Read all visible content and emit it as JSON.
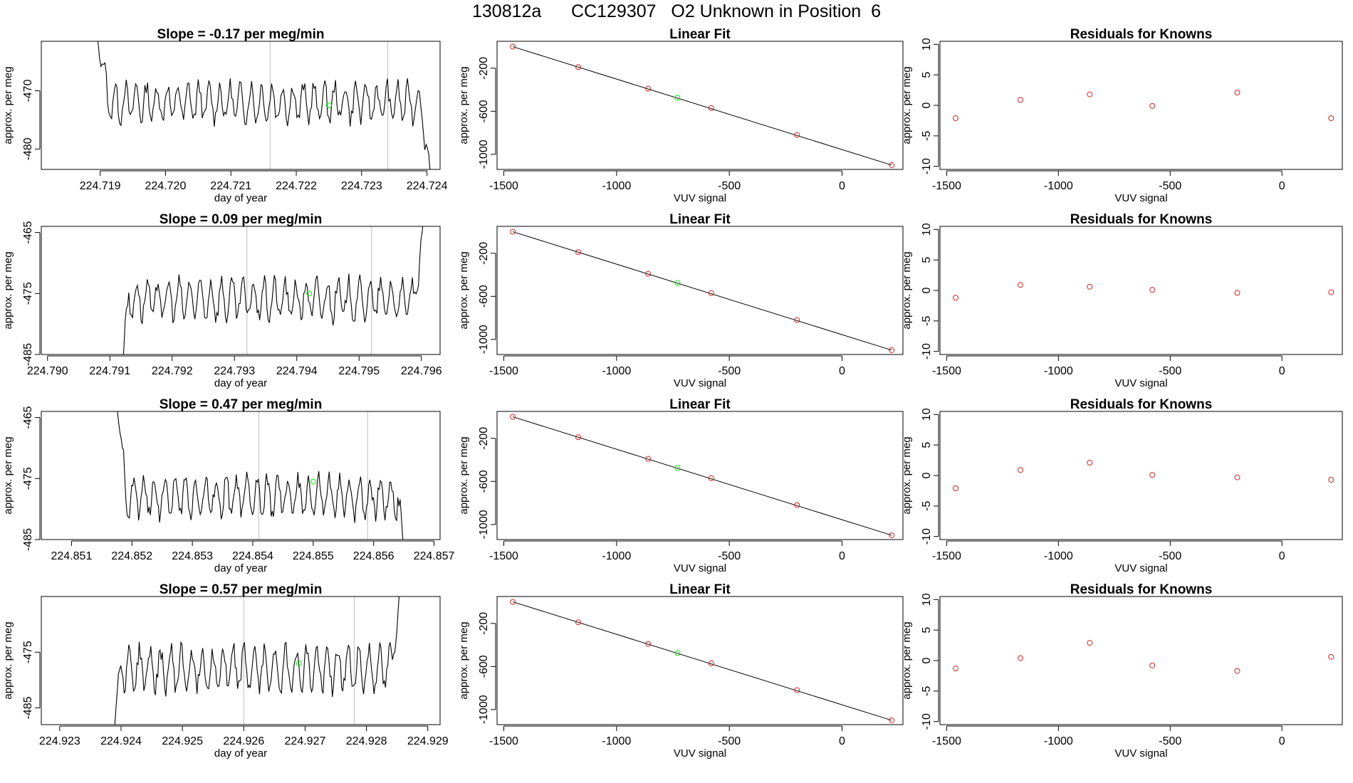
{
  "page_title": "130812a      CC129307   O2 Unknown in Position  6",
  "colors": {
    "trace": "#000000",
    "known_point": "#cd2626",
    "unknown_point": "#00ee00",
    "vline": "#bebebe"
  },
  "chart_data": [
    {
      "type": "line",
      "title": "Slope =  -0.17  per meg/min",
      "xlabel": "day of year",
      "ylabel": "approx. per meg",
      "xlim": [
        224.7181,
        224.7242
      ],
      "ylim": [
        -483.5,
        -461.5
      ],
      "xticks": [
        224.719,
        224.72,
        224.721,
        224.722,
        224.723,
        224.724
      ],
      "xtick_labels": [
        "224.719",
        "224.720",
        "224.721",
        "224.722",
        "224.723",
        "224.724"
      ],
      "yticks": [
        -480,
        -470
      ],
      "ytick_labels": [
        "-480",
        "-470"
      ],
      "vlines": [
        224.7216,
        224.7234
      ],
      "trace": {
        "x_start": 224.71887,
        "x_end": 224.72417,
        "base": -472,
        "amplitude": 3.0,
        "period": 0.00016,
        "start_value": -455,
        "end_value": -495
      },
      "unknown_point": {
        "x": 224.7225,
        "y": -472.5
      }
    },
    {
      "type": "scatter",
      "title": "Linear Fit",
      "xlabel": "VUV signal",
      "ylabel": "approx. per meg",
      "xlim": [
        -1530,
        270
      ],
      "ylim": [
        -1140,
        50
      ],
      "xticks": [
        -1500,
        -1000,
        -500,
        0
      ],
      "xtick_labels": [
        "-1500",
        "-1000",
        "-500",
        "0"
      ],
      "yticks": [
        -1000,
        -600,
        -200
      ],
      "ytick_labels": [
        "-1000",
        "-600",
        "-200"
      ],
      "fit_line": {
        "x": [
          -1460,
          220
        ],
        "y": [
          0,
          -1100
        ]
      },
      "knowns": {
        "x": [
          -1460,
          -1170,
          -860,
          -580,
          -200,
          220
        ],
        "y": [
          0,
          -190,
          -390,
          -570,
          -820,
          -1100
        ]
      },
      "unknown": {
        "x": -730,
        "y": -475
      }
    },
    {
      "type": "scatter",
      "title": "Residuals for Knowns",
      "xlabel": "VUV signal",
      "ylabel": "approx. per meg",
      "xlim": [
        -1530,
        270
      ],
      "ylim": [
        -10.5,
        10.5
      ],
      "xticks": [
        -1500,
        -1000,
        -500,
        0
      ],
      "xtick_labels": [
        "-1500",
        "-1000",
        "-500",
        "0"
      ],
      "yticks": [
        -10,
        -5,
        0,
        5,
        10
      ],
      "ytick_labels": [
        "-10",
        "-5",
        "0",
        "5",
        "10"
      ],
      "residuals": {
        "x": [
          -1460,
          -1170,
          -860,
          -580,
          -200,
          220
        ],
        "y": [
          -2.1,
          0.9,
          1.8,
          -0.1,
          2.1,
          -2.1
        ]
      }
    },
    {
      "type": "line",
      "title": "Slope =  0.09  per meg/min",
      "xlabel": "day of year",
      "ylabel": "approx. per meg",
      "xlim": [
        224.7899,
        224.7963
      ],
      "ylim": [
        -485,
        -464
      ],
      "xticks": [
        224.79,
        224.791,
        224.792,
        224.793,
        224.794,
        224.795,
        224.796
      ],
      "xtick_labels": [
        "224.790",
        "224.791",
        "224.792",
        "224.793",
        "224.794",
        "224.795",
        "224.796"
      ],
      "yticks": [
        -485,
        -475,
        -465
      ],
      "ytick_labels": [
        "-485",
        "-475",
        "-465"
      ],
      "vlines": [
        224.7932,
        224.7952
      ],
      "trace": {
        "x_start": 224.79105,
        "x_end": 224.79615,
        "base": -476,
        "amplitude": 3.0,
        "period": 0.00017,
        "start_value": -500,
        "end_value": -455
      },
      "unknown_point": {
        "x": 224.7942,
        "y": -475
      }
    },
    {
      "type": "scatter",
      "title": "Linear Fit",
      "xlabel": "VUV signal",
      "ylabel": "approx. per meg",
      "xlim": [
        -1530,
        270
      ],
      "ylim": [
        -1140,
        50
      ],
      "xticks": [
        -1500,
        -1000,
        -500,
        0
      ],
      "xtick_labels": [
        "-1500",
        "-1000",
        "-500",
        "0"
      ],
      "yticks": [
        -1000,
        -600,
        -200
      ],
      "ytick_labels": [
        "-1000",
        "-600",
        "-200"
      ],
      "fit_line": {
        "x": [
          -1460,
          220
        ],
        "y": [
          0,
          -1100
        ]
      },
      "knowns": {
        "x": [
          -1460,
          -1170,
          -860,
          -580,
          -200,
          220
        ],
        "y": [
          0,
          -190,
          -390,
          -570,
          -820,
          -1100
        ]
      },
      "unknown": {
        "x": -730,
        "y": -475
      }
    },
    {
      "type": "scatter",
      "title": "Residuals for Knowns",
      "xlabel": "VUV signal",
      "ylabel": "approx. per meg",
      "xlim": [
        -1530,
        270
      ],
      "ylim": [
        -10.5,
        10.5
      ],
      "xticks": [
        -1500,
        -1000,
        -500,
        0
      ],
      "xtick_labels": [
        "-1500",
        "-1000",
        "-500",
        "0"
      ],
      "yticks": [
        -10,
        -5,
        0,
        5,
        10
      ],
      "ytick_labels": [
        "-10",
        "-5",
        "0",
        "5",
        "10"
      ],
      "residuals": {
        "x": [
          -1460,
          -1170,
          -860,
          -580,
          -200,
          220
        ],
        "y": [
          -1.2,
          0.9,
          0.6,
          0.1,
          -0.4,
          -0.3
        ]
      }
    },
    {
      "type": "line",
      "title": "Slope =  0.47  per meg/min",
      "xlabel": "day of year",
      "ylabel": "approx. per meg",
      "xlim": [
        224.8505,
        224.8571
      ],
      "ylim": [
        -485,
        -464
      ],
      "xticks": [
        224.851,
        224.852,
        224.853,
        224.854,
        224.855,
        224.856,
        224.857
      ],
      "xtick_labels": [
        "224.851",
        "224.852",
        "224.853",
        "224.854",
        "224.855",
        "224.856",
        "224.857"
      ],
      "yticks": [
        -485,
        -475,
        -465
      ],
      "ytick_labels": [
        "-485",
        "-475",
        "-465"
      ],
      "vlines": [
        224.8541,
        224.8559
      ],
      "trace": {
        "x_start": 224.85165,
        "x_end": 224.85665,
        "base": -478,
        "amplitude": 3.0,
        "period": 0.00017,
        "start_value": -450,
        "end_value": -500
      },
      "unknown_point": {
        "x": 224.855,
        "y": -475.5
      }
    },
    {
      "type": "scatter",
      "title": "Linear Fit",
      "xlabel": "VUV signal",
      "ylabel": "approx. per meg",
      "xlim": [
        -1530,
        270
      ],
      "ylim": [
        -1140,
        50
      ],
      "xticks": [
        -1500,
        -1000,
        -500,
        0
      ],
      "xtick_labels": [
        "-1500",
        "-1000",
        "-500",
        "0"
      ],
      "yticks": [
        -1000,
        -600,
        -200
      ],
      "ytick_labels": [
        "-1000",
        "-600",
        "-200"
      ],
      "fit_line": {
        "x": [
          -1460,
          220
        ],
        "y": [
          0,
          -1100
        ]
      },
      "knowns": {
        "x": [
          -1460,
          -1170,
          -860,
          -580,
          -200,
          220
        ],
        "y": [
          0,
          -190,
          -390,
          -570,
          -820,
          -1100
        ]
      },
      "unknown": {
        "x": -730,
        "y": -475
      }
    },
    {
      "type": "scatter",
      "title": "Residuals for Knowns",
      "xlabel": "VUV signal",
      "ylabel": "approx. per meg",
      "xlim": [
        -1530,
        270
      ],
      "ylim": [
        -10.5,
        10.5
      ],
      "xticks": [
        -1500,
        -1000,
        -500,
        0
      ],
      "xtick_labels": [
        "-1500",
        "-1000",
        "-500",
        "0"
      ],
      "yticks": [
        -10,
        -5,
        0,
        5,
        10
      ],
      "ytick_labels": [
        "-10",
        "-5",
        "0",
        "5",
        "10"
      ],
      "residuals": {
        "x": [
          -1460,
          -1170,
          -860,
          -580,
          -200,
          220
        ],
        "y": [
          -2.1,
          0.9,
          2.1,
          0.1,
          -0.3,
          -0.7
        ]
      }
    },
    {
      "type": "line",
      "title": "Slope =  0.57  per meg/min",
      "xlabel": "day of year",
      "ylabel": "approx. per meg",
      "xlim": [
        224.9227,
        224.9292
      ],
      "ylim": [
        -488,
        -465
      ],
      "xticks": [
        224.923,
        224.924,
        224.925,
        224.926,
        224.927,
        224.928,
        224.929
      ],
      "xtick_labels": [
        "224.923",
        "224.924",
        "224.925",
        "224.926",
        "224.927",
        "224.928",
        "224.929"
      ],
      "yticks": [
        -485,
        -475
      ],
      "ytick_labels": [
        "-485",
        "-475"
      ],
      "vlines": [
        224.926,
        224.9278
      ],
      "trace": {
        "x_start": 224.92375,
        "x_end": 224.92865,
        "base": -478,
        "amplitude": 3.5,
        "period": 0.00017,
        "start_value": -500,
        "end_value": -455
      },
      "unknown_point": {
        "x": 224.9269,
        "y": -477
      }
    },
    {
      "type": "scatter",
      "title": "Linear Fit",
      "xlabel": "VUV signal",
      "ylabel": "approx. per meg",
      "xlim": [
        -1530,
        270
      ],
      "ylim": [
        -1140,
        50
      ],
      "xticks": [
        -1500,
        -1000,
        -500,
        0
      ],
      "xtick_labels": [
        "-1500",
        "-1000",
        "-500",
        "0"
      ],
      "yticks": [
        -1000,
        -600,
        -200
      ],
      "ytick_labels": [
        "-1000",
        "-600",
        "-200"
      ],
      "fit_line": {
        "x": [
          -1460,
          220
        ],
        "y": [
          0,
          -1100
        ]
      },
      "knowns": {
        "x": [
          -1460,
          -1170,
          -860,
          -580,
          -200,
          220
        ],
        "y": [
          0,
          -190,
          -390,
          -570,
          -820,
          -1100
        ]
      },
      "unknown": {
        "x": -730,
        "y": -475
      }
    },
    {
      "type": "scatter",
      "title": "Residuals for Knowns",
      "xlabel": "VUV signal",
      "ylabel": "approx. per meg",
      "xlim": [
        -1530,
        270
      ],
      "ylim": [
        -10.5,
        10.5
      ],
      "xticks": [
        -1500,
        -1000,
        -500,
        0
      ],
      "xtick_labels": [
        "-1500",
        "-1000",
        "-500",
        "0"
      ],
      "yticks": [
        -10,
        -5,
        0,
        5,
        10
      ],
      "ytick_labels": [
        "-10",
        "-5",
        "0",
        "5",
        "10"
      ],
      "residuals": {
        "x": [
          -1460,
          -1170,
          -860,
          -580,
          -200,
          220
        ],
        "y": [
          -1.3,
          0.4,
          2.9,
          -0.8,
          -1.7,
          0.6
        ]
      }
    }
  ]
}
